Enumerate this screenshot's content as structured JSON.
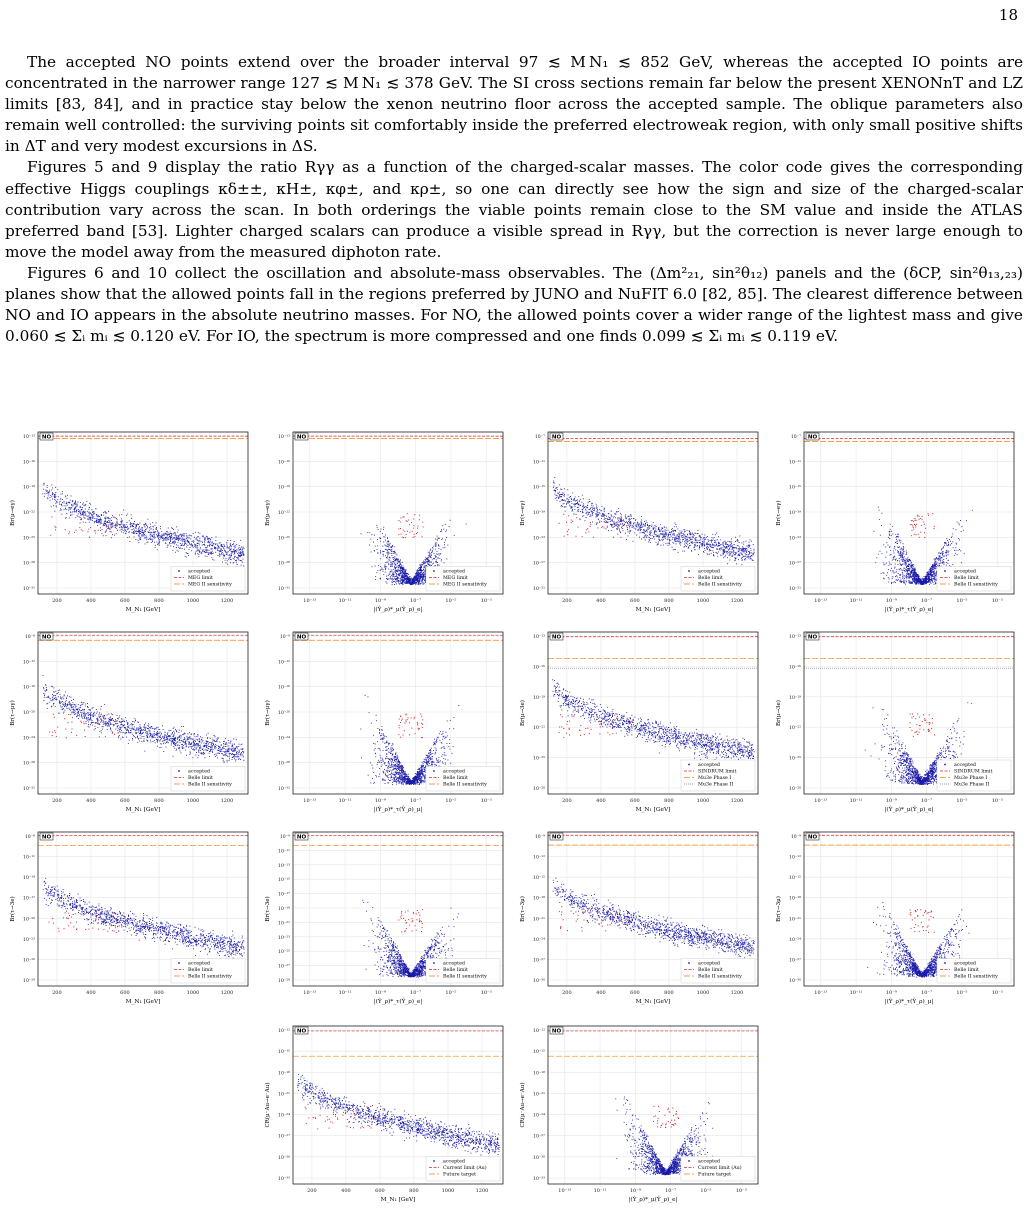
{
  "page_number": "18",
  "paragraphs": [
    "The accepted NO points extend over the broader interval 97 ≲ M N₁ ≲ 852 GeV, whereas the accepted IO points are concentrated in the narrower range 127 ≲ M N₁ ≲ 378 GeV. The SI cross sections remain far below the present XENONnT and LZ limits [83, 84], and in practice stay below the xenon neutrino floor across the accepted sample. The oblique parameters also remain well controlled: the surviving points sit comfortably inside the preferred electroweak region, with only small positive shifts in ΔT and very modest excursions in ΔS.",
    "Figures 5 and 9 display the ratio Rγγ as a function of the charged-scalar masses. The color code gives the corresponding effective Higgs couplings κδ±±, κH±, κφ±, and κρ±, so one can directly see how the sign and size of the charged-scalar contribution vary across the scan. In both orderings the viable points remain close to the SM value and inside the ATLAS preferred band [53]. Lighter charged scalars can produce a visible spread in Rγγ, but the correction is never large enough to move the model away from the measured diphoton rate.",
    "Figures 6 and 10 collect the oscillation and absolute-mass observables. The (Δm²₂₁, sin²θ₁₂) panels and the (δCP, sin²θ₁₃,₂₃) planes show that the allowed points fall in the regions preferred by JUNO and NuFIT 6.0 [82, 85]. The clearest difference between NO and IO appears in the absolute neutrino masses. For NO, the allowed points cover a wider range of the lightest mass and give 0.060 ≲ Σᵢ mᵢ ≲ 0.120 eV. For IO, the spectrum is more compressed and one finds 0.099 ≲ Σᵢ mᵢ ≲ 0.119 eV."
  ],
  "colors": {
    "points": "#1a1aa8",
    "red_points": "#d62728",
    "limit": "#d62728",
    "sensitivity": "#ff7f0e",
    "phase2": "#7f7f7f"
  },
  "chart_data": [
    {
      "type": "scatter",
      "panel_label": "NO",
      "kind": "mass",
      "ylabel": "Br(μ→eγ)",
      "xlabel": "M_N₁ [GeV]",
      "x_ticks": [
        "200",
        "400",
        "600",
        "800",
        "1000",
        "1200"
      ],
      "y_ticks": [
        "10⁻¹³",
        "10⁻¹⁶",
        "10⁻¹⁹",
        "10⁻²²",
        "10⁻²⁵",
        "10⁻²⁸",
        "10⁻³¹"
      ],
      "y_range": [
        -32,
        -12.5
      ],
      "limits": [
        -13,
        -13.3
      ],
      "seed": 11,
      "legend": [
        "accepted",
        "MEG limit",
        "MEG II sensitivity"
      ]
    },
    {
      "type": "scatter",
      "panel_label": "NO",
      "kind": "yuk",
      "ylabel": "Br(μ→eγ)",
      "xlabel": "|(Ŷ_ρ)*_μ(Ŷ_ρ)_e|",
      "x_ticks": [
        "10⁻¹³",
        "10⁻¹¹",
        "10⁻⁹",
        "10⁻⁷",
        "10⁻⁵",
        "10⁻³"
      ],
      "y_ticks": [
        "10⁻¹³",
        "10⁻¹⁶",
        "10⁻¹⁹",
        "10⁻²²",
        "10⁻²⁵",
        "10⁻²⁸",
        "10⁻³¹"
      ],
      "y_range": [
        -32,
        -12.5
      ],
      "limits": [
        -13,
        -13.3
      ],
      "seed": 12,
      "legend": [
        "accepted",
        "MEG limit",
        "MEG II sensitivity"
      ]
    },
    {
      "type": "scatter",
      "panel_label": "NO",
      "kind": "mass",
      "ylabel": "Br(τ→eγ)",
      "xlabel": "M_N₁ [GeV]",
      "x_ticks": [
        "200",
        "400",
        "600",
        "800",
        "1000",
        "1200"
      ],
      "y_ticks": [
        "10⁻⁷",
        "10⁻¹¹",
        "10⁻¹⁵",
        "10⁻¹⁹",
        "10⁻²³",
        "10⁻²⁷",
        "10⁻³¹"
      ],
      "y_range": [
        -32,
        -6.5
      ],
      "limits": [
        -7.5,
        -8
      ],
      "seed": 13,
      "legend": [
        "accepted",
        "Belle limit",
        "Belle II sensitivity"
      ]
    },
    {
      "type": "scatter",
      "panel_label": "NO",
      "kind": "yuk",
      "ylabel": "Br(τ→eγ)",
      "xlabel": "|(Ŷ_ρ)*_τ(Ŷ_ρ)_e|",
      "x_ticks": [
        "10⁻¹³",
        "10⁻¹¹",
        "10⁻⁹",
        "10⁻⁷",
        "10⁻⁵",
        "10⁻³"
      ],
      "y_ticks": [
        "10⁻⁷",
        "10⁻¹¹",
        "10⁻¹⁵",
        "10⁻¹⁹",
        "10⁻²³",
        "10⁻²⁷",
        "10⁻³¹"
      ],
      "y_range": [
        -32,
        -6.5
      ],
      "limits": [
        -7.5,
        -8
      ],
      "seed": 14,
      "legend": [
        "accepted",
        "Belle limit",
        "Belle II sensitivity"
      ]
    },
    {
      "type": "scatter",
      "panel_label": "NO",
      "kind": "mass",
      "ylabel": "Br(τ→μγ)",
      "xlabel": "M_N₁ [GeV]",
      "x_ticks": [
        "200",
        "400",
        "600",
        "800",
        "1000",
        "1200"
      ],
      "y_ticks": [
        "10⁻⁸",
        "10⁻¹²",
        "10⁻¹⁶",
        "10⁻²⁰",
        "10⁻²⁴",
        "10⁻²⁸",
        "10⁻³²"
      ],
      "y_range": [
        -33,
        -7.5
      ],
      "limits": [
        -8,
        -8.8
      ],
      "seed": 21,
      "legend": [
        "accepted",
        "Belle limit",
        "Belle II sensitivity"
      ]
    },
    {
      "type": "scatter",
      "panel_label": "NO",
      "kind": "yuk",
      "ylabel": "Br(τ→μγ)",
      "xlabel": "|(Ŷ_ρ)*_τ(Ŷ_ρ)_μ|",
      "x_ticks": [
        "10⁻¹³",
        "10⁻¹¹",
        "10⁻⁹",
        "10⁻⁷",
        "10⁻⁵",
        "10⁻³"
      ],
      "y_ticks": [
        "10⁻⁸",
        "10⁻¹²",
        "10⁻¹⁶",
        "10⁻²⁰",
        "10⁻²⁴",
        "10⁻²⁸",
        "10⁻³²"
      ],
      "y_range": [
        -33,
        -7.5
      ],
      "limits": [
        -8,
        -8.8
      ],
      "seed": 22,
      "legend": [
        "accepted",
        "Belle limit",
        "Belle II sensitivity"
      ]
    },
    {
      "type": "scatter",
      "panel_label": "NO",
      "kind": "mass",
      "ylabel": "Br(μ→3e)",
      "xlabel": "M_N₁ [GeV]",
      "x_ticks": [
        "200",
        "400",
        "600",
        "800",
        "1000",
        "1200"
      ],
      "y_ticks": [
        "10⁻¹³",
        "10⁻¹⁶",
        "10⁻¹⁹",
        "10⁻²²",
        "10⁻²⁵",
        "10⁻²⁸"
      ],
      "y_range": [
        -29.5,
        -12.5
      ],
      "limits": [
        -13,
        -15.3,
        -16.3
      ],
      "seed": 23,
      "legend": [
        "accepted",
        "SINDRUM limit",
        "Mu3e Phase I",
        "Mu3e Phase II"
      ]
    },
    {
      "type": "scatter",
      "panel_label": "NO",
      "kind": "yuk",
      "ylabel": "Br(μ→3e)",
      "xlabel": "|(Ŷ_ρ)*_μ(Ŷ_ρ)_e|",
      "x_ticks": [
        "10⁻¹³",
        "10⁻¹¹",
        "10⁻⁹",
        "10⁻⁷",
        "10⁻⁵",
        "10⁻³"
      ],
      "y_ticks": [
        "10⁻¹³",
        "10⁻¹⁶",
        "10⁻¹⁹",
        "10⁻²²",
        "10⁻²⁵",
        "10⁻²⁸"
      ],
      "y_range": [
        -29.5,
        -12.5
      ],
      "limits": [
        -13,
        -15.3,
        -16.3
      ],
      "seed": 24,
      "legend": [
        "accepted",
        "SINDRUM limit",
        "Mu3e Phase I",
        "Mu3e Phase II"
      ]
    },
    {
      "type": "scatter",
      "panel_label": "NO",
      "kind": "mass",
      "ylabel": "Br(τ→3e)",
      "xlabel": "M_N₁ [GeV]",
      "x_ticks": [
        "200",
        "400",
        "600",
        "800",
        "1000",
        "1200"
      ],
      "y_ticks": [
        "10⁻⁸",
        "10⁻¹¹",
        "10⁻¹⁴",
        "10⁻¹⁷",
        "10⁻²⁰",
        "10⁻²³",
        "10⁻²⁶",
        "10⁻²⁹"
      ],
      "y_range": [
        -30,
        -7.5
      ],
      "limits": [
        -8,
        -9.5
      ],
      "seed": 31,
      "legend": [
        "accepted",
        "Belle limit",
        "Belle II sensitivity"
      ]
    },
    {
      "type": "scatter",
      "panel_label": "NO",
      "kind": "yuk",
      "ylabel": "Br(τ→3e)",
      "xlabel": "|(Ŷ_ρ)*_τ(Ŷ_ρ)_e|",
      "x_ticks": [
        "10⁻¹³",
        "10⁻¹¹",
        "10⁻⁹",
        "10⁻⁷",
        "10⁻⁵",
        "10⁻³"
      ],
      "y_ticks": [
        "10⁻⁹",
        "10⁻¹¹",
        "10⁻¹³",
        "10⁻¹⁵",
        "10⁻¹⁷",
        "10⁻¹⁹",
        "10⁻²¹",
        "10⁻²³",
        "10⁻²⁵",
        "10⁻²⁷",
        "10⁻²⁹"
      ],
      "y_range": [
        -30,
        -7.5
      ],
      "limits": [
        -8,
        -9.5
      ],
      "seed": 32,
      "legend": [
        "accepted",
        "Belle limit",
        "Belle II sensitivity"
      ]
    },
    {
      "type": "scatter",
      "panel_label": "NO",
      "kind": "mass",
      "ylabel": "Br(τ→3μ)",
      "xlabel": "M_N₁ [GeV]",
      "x_ticks": [
        "200",
        "400",
        "600",
        "800",
        "1000",
        "1200"
      ],
      "y_ticks": [
        "10⁻⁹",
        "10⁻¹²",
        "10⁻¹⁵",
        "10⁻¹⁸",
        "10⁻²¹",
        "10⁻²⁴",
        "10⁻²⁷",
        "10⁻³⁰"
      ],
      "y_range": [
        -31,
        -7.5
      ],
      "limits": [
        -8,
        -9.5
      ],
      "seed": 33,
      "legend": [
        "accepted",
        "Belle limit",
        "Belle II sensitivity"
      ]
    },
    {
      "type": "scatter",
      "panel_label": "NO",
      "kind": "yuk",
      "ylabel": "Br(τ→3μ)",
      "xlabel": "|(Ŷ_ρ)*_τ(Ŷ_ρ)_μ|",
      "x_ticks": [
        "10⁻¹³",
        "10⁻¹¹",
        "10⁻⁹",
        "10⁻⁷",
        "10⁻⁵",
        "10⁻³"
      ],
      "y_ticks": [
        "10⁻⁹",
        "10⁻¹²",
        "10⁻¹⁵",
        "10⁻¹⁸",
        "10⁻²¹",
        "10⁻²⁴",
        "10⁻²⁷",
        "10⁻³⁰"
      ],
      "y_range": [
        -31,
        -7.5
      ],
      "limits": [
        -8,
        -9.5
      ],
      "seed": 34,
      "legend": [
        "accepted",
        "Belle limit",
        "Belle II sensitivity"
      ]
    },
    {
      "type": "scatter",
      "panel_label": "NO",
      "kind": "mass",
      "ylabel": "CR(μ⁻Au→e⁻Au)",
      "xlabel": "M_N₁ [GeV]",
      "x_ticks": [
        "200",
        "400",
        "600",
        "800",
        "1000",
        "1200"
      ],
      "y_ticks": [
        "10⁻¹²",
        "10⁻¹⁵",
        "10⁻¹⁸",
        "10⁻²¹",
        "10⁻²⁴",
        "10⁻²⁷",
        "10⁻³⁰",
        "10⁻³³"
      ],
      "y_range": [
        -34,
        -11.5
      ],
      "limits": [
        -12.2,
        -15.8
      ],
      "seed": 41,
      "legend": [
        "accepted",
        "Current limit (Au)",
        "Future target"
      ]
    },
    {
      "type": "scatter",
      "panel_label": "NO",
      "kind": "yuk",
      "ylabel": "CR(μ⁻Au→e⁻Au)",
      "xlabel": "|(Ŷ_ρ)*_μ(Ŷ_ρ)_e|",
      "x_ticks": [
        "10⁻¹³",
        "10⁻¹¹",
        "10⁻⁹",
        "10⁻⁷",
        "10⁻⁵",
        "10⁻³"
      ],
      "y_ticks": [
        "10⁻¹²",
        "10⁻¹⁵",
        "10⁻¹⁸",
        "10⁻²¹",
        "10⁻²⁴",
        "10⁻²⁷",
        "10⁻³⁰",
        "10⁻³³"
      ],
      "y_range": [
        -34,
        -11.5
      ],
      "limits": [
        -12.2,
        -15.8
      ],
      "seed": 42,
      "legend": [
        "accepted",
        "Current limit (Au)",
        "Future target"
      ]
    }
  ]
}
